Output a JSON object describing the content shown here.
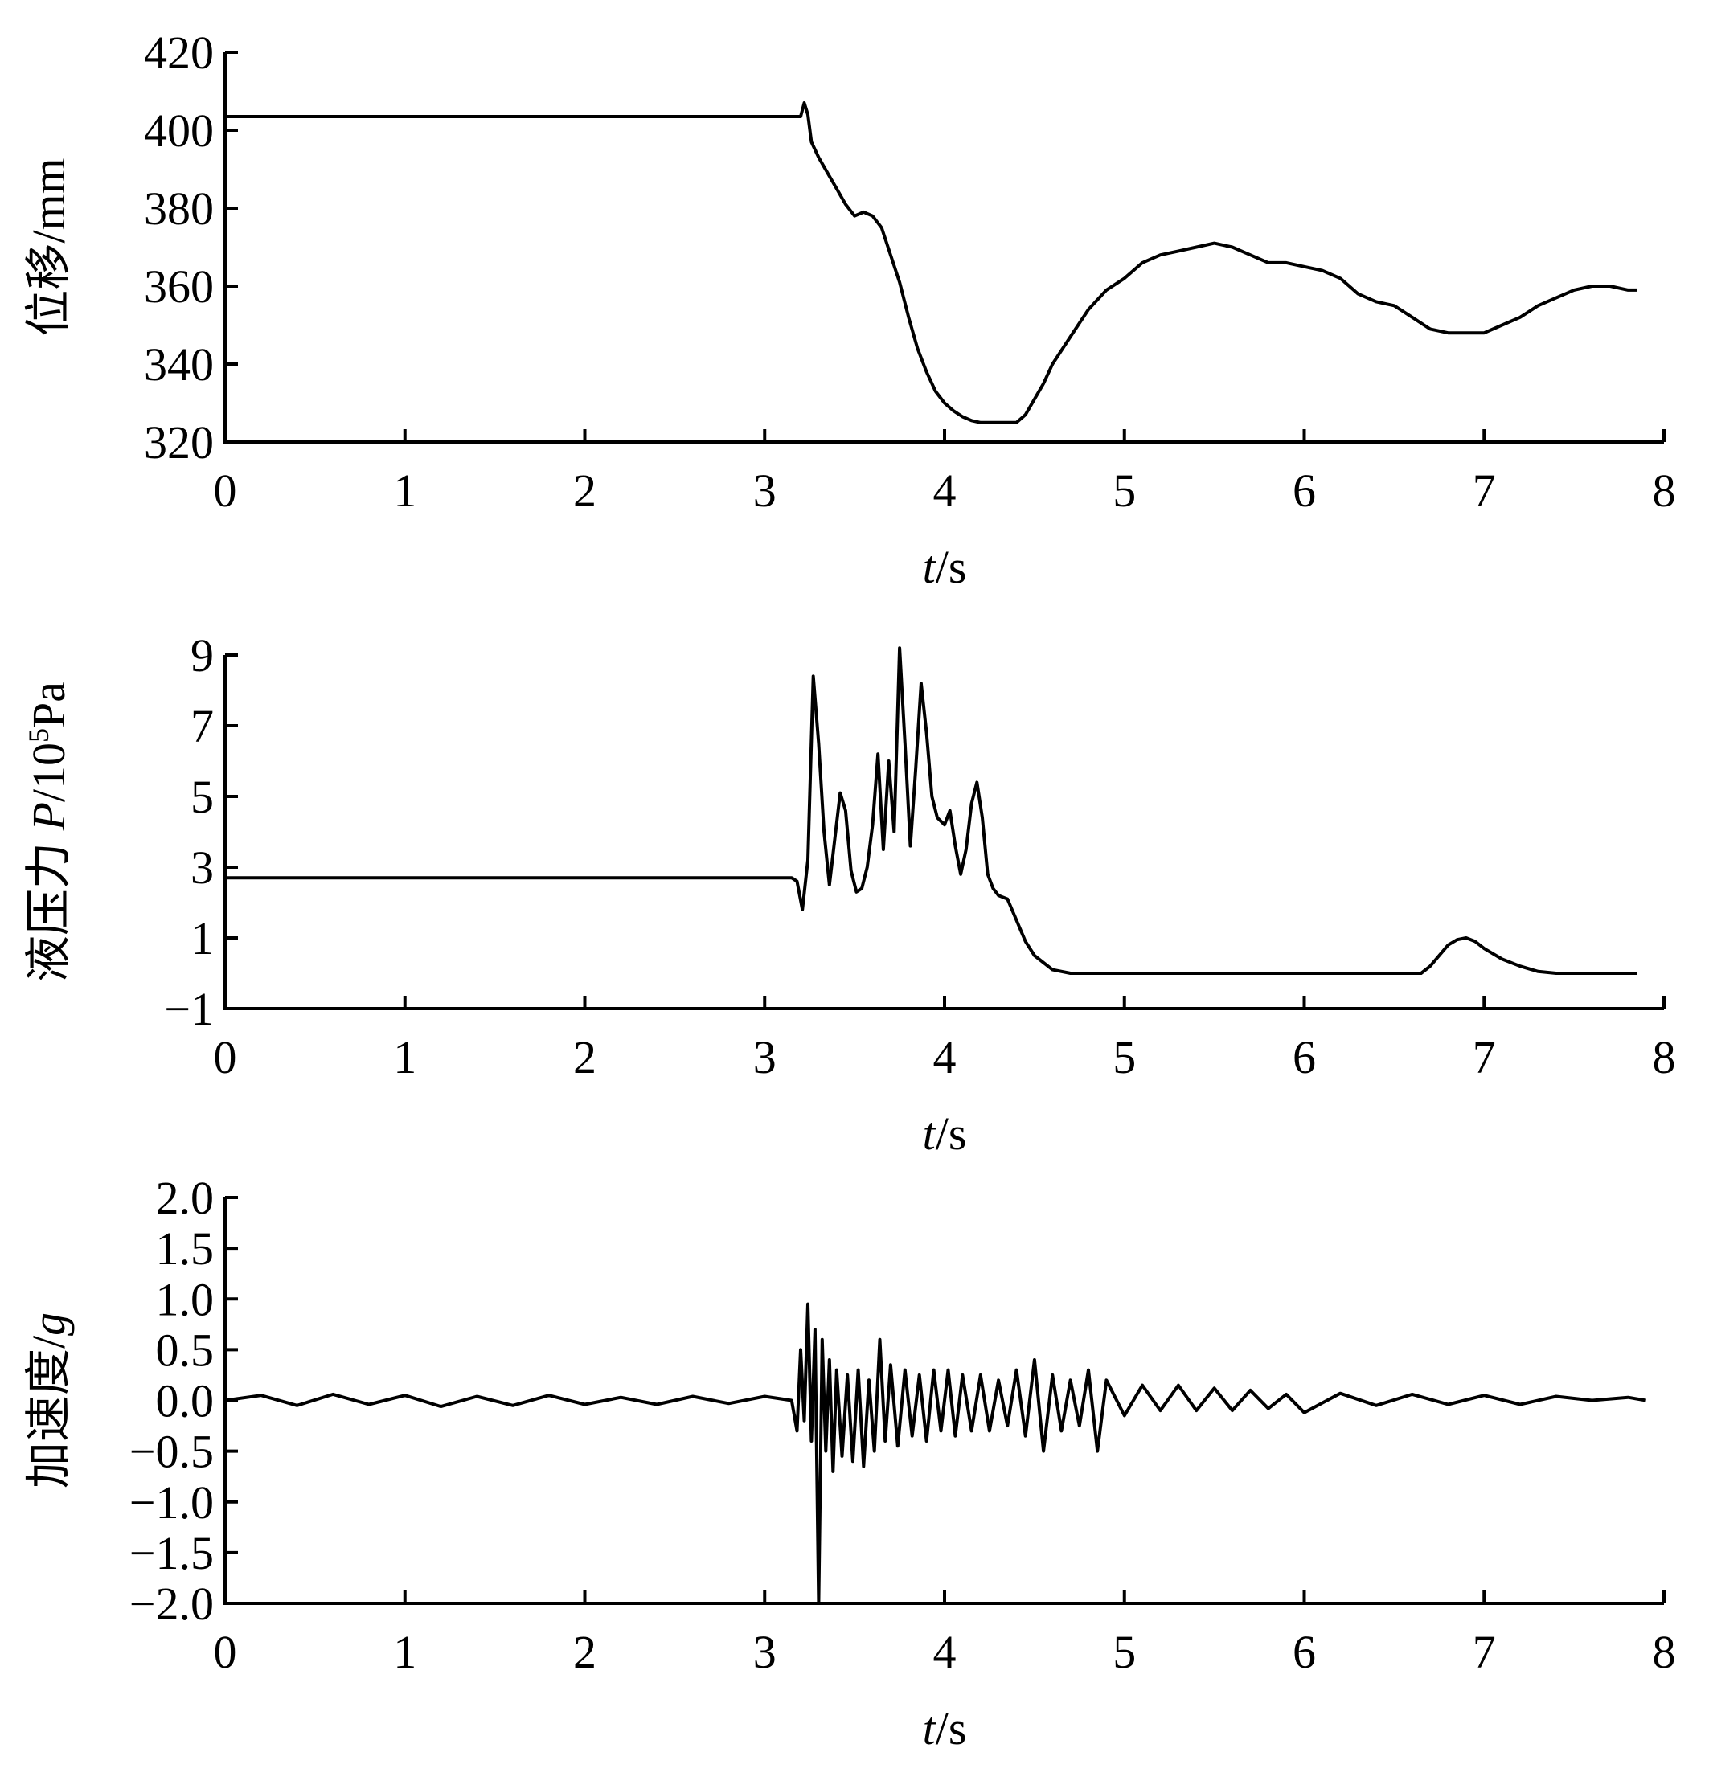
{
  "chart_data": [
    {
      "type": "line",
      "xlabel_italic": "t",
      "xlabel_rest": "/s",
      "ylabel": "位移/mm",
      "xlim": [
        0,
        8
      ],
      "ylim": [
        320,
        420
      ],
      "x_ticks": [
        0,
        1,
        2,
        3,
        4,
        5,
        6,
        7,
        8
      ],
      "y_ticks": [
        320,
        340,
        360,
        380,
        400,
        420
      ],
      "x_tick_labels": [
        "0",
        "1",
        "2",
        "3",
        "4",
        "5",
        "6",
        "7",
        "8"
      ],
      "y_tick_labels": [
        "320",
        "340",
        "360",
        "380",
        "400",
        "420"
      ],
      "grid": false,
      "series": [
        {
          "x": [
            0,
            3.15,
            3.2,
            3.22,
            3.24,
            3.26,
            3.3,
            3.35,
            3.4,
            3.45,
            3.5,
            3.55,
            3.6,
            3.65,
            3.7,
            3.75,
            3.8,
            3.85,
            3.9,
            3.95,
            4.0,
            4.05,
            4.1,
            4.15,
            4.2,
            4.25,
            4.3,
            4.35,
            4.4,
            4.45,
            4.5,
            4.55,
            4.6,
            4.7,
            4.8,
            4.9,
            5.0,
            5.1,
            5.2,
            5.3,
            5.4,
            5.5,
            5.6,
            5.7,
            5.8,
            5.9,
            6.0,
            6.1,
            6.2,
            6.3,
            6.4,
            6.5,
            6.6,
            6.7,
            6.8,
            6.9,
            7.0,
            7.1,
            7.2,
            7.3,
            7.4,
            7.5,
            7.6,
            7.7,
            7.8,
            7.85
          ],
          "y": [
            403.5,
            403.5,
            403.5,
            407,
            404,
            397,
            393,
            389,
            385,
            381,
            378,
            379,
            378,
            375,
            368,
            361,
            352,
            344,
            338,
            333,
            330,
            328,
            326.5,
            325.5,
            325,
            325,
            325,
            325,
            325,
            327,
            331,
            335,
            340,
            347,
            354,
            359,
            362,
            366,
            368,
            369,
            370,
            371,
            370,
            368,
            366,
            366,
            365,
            364,
            362,
            358,
            356,
            355,
            352,
            349,
            348,
            348,
            348,
            350,
            352,
            355,
            357,
            359,
            360,
            360,
            359,
            359
          ]
        }
      ]
    },
    {
      "type": "line",
      "xlabel_italic": "t",
      "xlabel_rest": "/s",
      "ylabel_pre": "液压力 ",
      "ylabel_italic": "P",
      "ylabel_mid": "/10",
      "ylabel_sup": "5",
      "ylabel_post": "Pa",
      "xlim": [
        0,
        8
      ],
      "ylim": [
        -1,
        9
      ],
      "x_ticks": [
        0,
        1,
        2,
        3,
        4,
        5,
        6,
        7,
        8
      ],
      "y_ticks": [
        -1,
        1,
        3,
        5,
        7,
        9
      ],
      "x_tick_labels": [
        "0",
        "1",
        "2",
        "3",
        "4",
        "5",
        "6",
        "7",
        "8"
      ],
      "y_tick_labels": [
        "−1",
        "1",
        "3",
        "5",
        "7",
        "9"
      ],
      "grid": false,
      "series": [
        {
          "x": [
            0,
            3.15,
            3.18,
            3.21,
            3.24,
            3.27,
            3.3,
            3.33,
            3.36,
            3.39,
            3.42,
            3.45,
            3.48,
            3.51,
            3.54,
            3.57,
            3.6,
            3.63,
            3.66,
            3.69,
            3.72,
            3.75,
            3.78,
            3.81,
            3.84,
            3.87,
            3.9,
            3.93,
            3.96,
            4.0,
            4.03,
            4.06,
            4.09,
            4.12,
            4.15,
            4.18,
            4.21,
            4.24,
            4.27,
            4.3,
            4.35,
            4.4,
            4.45,
            4.5,
            4.6,
            4.7,
            5.0,
            6.0,
            6.65,
            6.7,
            6.75,
            6.8,
            6.85,
            6.9,
            6.95,
            7.0,
            7.1,
            7.2,
            7.3,
            7.4,
            7.85
          ],
          "y": [
            2.7,
            2.7,
            2.6,
            1.8,
            3.2,
            8.4,
            6.5,
            4.0,
            2.5,
            3.8,
            5.1,
            4.6,
            2.9,
            2.3,
            2.4,
            3.0,
            4.2,
            6.2,
            3.5,
            6.0,
            4.0,
            9.2,
            6.5,
            3.6,
            5.8,
            8.2,
            6.8,
            5.0,
            4.4,
            4.2,
            4.6,
            3.6,
            2.8,
            3.5,
            4.8,
            5.4,
            4.4,
            2.8,
            2.4,
            2.2,
            2.1,
            1.5,
            0.9,
            0.5,
            0.1,
            0,
            0,
            0,
            0,
            0.2,
            0.5,
            0.8,
            0.95,
            1.0,
            0.9,
            0.7,
            0.4,
            0.2,
            0.05,
            0,
            0
          ]
        }
      ]
    },
    {
      "type": "line",
      "xlabel_italic": "t",
      "xlabel_rest": "/s",
      "ylabel_pre": "加速度/",
      "ylabel_italic": "g",
      "xlim": [
        0,
        8
      ],
      "ylim": [
        -2,
        2
      ],
      "x_ticks": [
        0,
        1,
        2,
        3,
        4,
        5,
        6,
        7,
        8
      ],
      "y_ticks": [
        -2,
        -1.5,
        -1,
        -0.5,
        0,
        0.5,
        1,
        1.5,
        2
      ],
      "x_tick_labels": [
        "0",
        "1",
        "2",
        "3",
        "4",
        "5",
        "6",
        "7",
        "8"
      ],
      "y_tick_labels": [
        "−2.0",
        "−1.5",
        "−1.0",
        "−0.5",
        "0.0",
        "0.5",
        "1.0",
        "1.5",
        "2.0"
      ],
      "grid": false,
      "series": [
        {
          "x": [
            0,
            0.2,
            0.4,
            0.6,
            0.8,
            1.0,
            1.2,
            1.4,
            1.6,
            1.8,
            2.0,
            2.2,
            2.4,
            2.6,
            2.8,
            3.0,
            3.15,
            3.18,
            3.2,
            3.22,
            3.24,
            3.26,
            3.28,
            3.3,
            3.32,
            3.34,
            3.36,
            3.38,
            3.4,
            3.43,
            3.46,
            3.49,
            3.52,
            3.55,
            3.58,
            3.61,
            3.64,
            3.67,
            3.7,
            3.74,
            3.78,
            3.82,
            3.86,
            3.9,
            3.94,
            3.98,
            4.02,
            4.06,
            4.1,
            4.15,
            4.2,
            4.25,
            4.3,
            4.35,
            4.4,
            4.45,
            4.5,
            4.55,
            4.6,
            4.65,
            4.7,
            4.75,
            4.8,
            4.85,
            4.9,
            5.0,
            5.1,
            5.2,
            5.3,
            5.4,
            5.5,
            5.6,
            5.7,
            5.8,
            5.9,
            6.0,
            6.2,
            6.4,
            6.6,
            6.8,
            7.0,
            7.2,
            7.4,
            7.6,
            7.8,
            7.9
          ],
          "y": [
            0,
            0.05,
            -0.05,
            0.06,
            -0.04,
            0.05,
            -0.06,
            0.04,
            -0.05,
            0.05,
            -0.04,
            0.03,
            -0.04,
            0.04,
            -0.03,
            0.04,
            0,
            -0.3,
            0.5,
            -0.2,
            0.95,
            -0.4,
            0.7,
            -2.0,
            0.6,
            -0.5,
            0.4,
            -0.7,
            0.3,
            -0.55,
            0.25,
            -0.6,
            0.3,
            -0.65,
            0.2,
            -0.5,
            0.6,
            -0.4,
            0.35,
            -0.45,
            0.3,
            -0.35,
            0.25,
            -0.4,
            0.3,
            -0.3,
            0.3,
            -0.35,
            0.25,
            -0.3,
            0.25,
            -0.3,
            0.2,
            -0.25,
            0.3,
            -0.35,
            0.4,
            -0.5,
            0.25,
            -0.3,
            0.2,
            -0.25,
            0.3,
            -0.5,
            0.2,
            -0.15,
            0.15,
            -0.1,
            0.15,
            -0.1,
            0.12,
            -0.1,
            0.1,
            -0.08,
            0.06,
            -0.12,
            0.07,
            -0.05,
            0.06,
            -0.04,
            0.05,
            -0.04,
            0.04,
            0,
            0.03,
            0
          ]
        }
      ]
    }
  ]
}
